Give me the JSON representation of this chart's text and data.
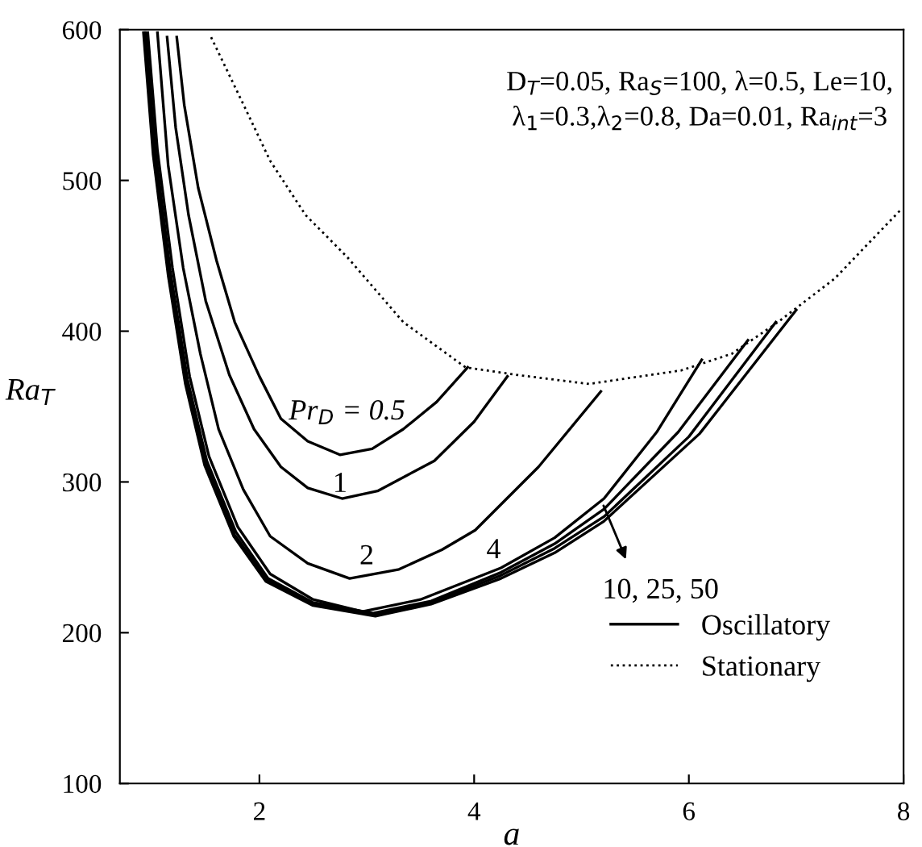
{
  "chart_data": {
    "type": "line",
    "xlabel": "a",
    "ylabel": "Ra$_{T}$",
    "xlim": [
      0.7,
      8
    ],
    "ylim": [
      100,
      600
    ],
    "xticks": [
      2,
      4,
      6,
      8
    ],
    "yticks": [
      100,
      200,
      300,
      400,
      500,
      600
    ],
    "grid": false,
    "legend": "bottom right",
    "marker": "none",
    "series": [
      {
        "name": "Oscillatory",
        "color": "#000000",
        "line_style": "solid",
        "x": [
          1.23,
          1.3,
          1.43,
          1.6,
          1.77,
          2.0,
          2.2,
          2.45,
          2.75,
          3.05,
          3.34,
          3.65,
          3.94
        ],
        "values": [
          595,
          550,
          495,
          447,
          406,
          370,
          342,
          327,
          318,
          322,
          335,
          353,
          376
        ]
      },
      {
        "color": "#000000",
        "line_style": "solid",
        "x": [
          1.14,
          1.22,
          1.34,
          1.5,
          1.72,
          1.95,
          2.2,
          2.45,
          2.77,
          3.1,
          3.63,
          4.0,
          4.31
        ],
        "values": [
          595,
          535,
          477,
          420,
          371,
          335,
          310,
          296,
          289,
          294,
          314,
          340,
          370
        ]
      },
      {
        "color": "#000000",
        "line_style": "solid",
        "x": [
          1.05,
          1.15,
          1.29,
          1.45,
          1.62,
          1.85,
          2.1,
          2.45,
          2.84,
          3.3,
          3.7,
          4.01,
          4.6,
          5.18
        ],
        "values": [
          598,
          510,
          442,
          385,
          335,
          295,
          264,
          246,
          236,
          242,
          255,
          268,
          310,
          360
        ]
      },
      {
        "color": "#000000",
        "line_style": "solid",
        "x": [
          0.96,
          1.05,
          1.19,
          1.35,
          1.53,
          1.8,
          2.1,
          2.5,
          2.96,
          3.5,
          4.25,
          4.75,
          5.21,
          5.7,
          6.12
        ],
        "values": [
          598,
          520,
          442,
          370,
          317,
          270,
          239,
          222,
          214,
          222,
          243,
          263,
          289,
          333,
          381
        ]
      },
      {
        "color": "#000000",
        "line_style": "solid",
        "x": [
          0.94,
          1.03,
          1.17,
          1.33,
          1.51,
          1.78,
          2.08,
          2.5,
          3.06,
          3.6,
          4.25,
          4.75,
          5.21,
          5.9,
          6.55
        ],
        "values": [
          598,
          520,
          440,
          368,
          314,
          267,
          236,
          220,
          213,
          221,
          240,
          259,
          282,
          333,
          394
        ]
      },
      {
        "color": "#000000",
        "line_style": "solid",
        "x": [
          0.93,
          1.02,
          1.16,
          1.32,
          1.5,
          1.77,
          2.07,
          2.5,
          3.06,
          3.6,
          4.25,
          4.75,
          5.21,
          6.0,
          6.81
        ],
        "values": [
          598,
          518,
          438,
          366,
          312,
          265,
          235,
          219,
          212,
          220,
          238,
          256,
          277,
          330,
          406
        ]
      },
      {
        "color": "#000000",
        "line_style": "solid",
        "x": [
          0.92,
          1.01,
          1.15,
          1.31,
          1.49,
          1.76,
          2.06,
          2.5,
          3.08,
          3.6,
          4.25,
          4.75,
          5.21,
          6.1,
          7.0
        ],
        "values": [
          598,
          517,
          437,
          365,
          311,
          264,
          234,
          218,
          211,
          219,
          236,
          253,
          274,
          332,
          414
        ]
      },
      {
        "name": "Stationary",
        "color": "#000000",
        "line_style": "dotted",
        "x": [
          1.55,
          1.86,
          2.1,
          2.43,
          2.82,
          3.34,
          3.92,
          4.4,
          5.07,
          5.93,
          6.4,
          6.83,
          7.36,
          7.98
        ],
        "values": [
          595,
          549,
          513,
          477,
          449,
          406,
          376,
          371,
          365,
          374,
          385,
          406,
          435,
          481
        ]
      }
    ],
    "annotations": [
      "D$_{T}$=0.05, Ra$_{S}$=100, λ=0.5, Le=10,\nλ$_{1}$=0.3,λ$_{2}$=0.8, Da=0.01, Ra$_{int}$=3",
      "Pr$_{D}$ = 0.5",
      "1",
      "2",
      "4",
      "10, 25, 50"
    ]
  }
}
